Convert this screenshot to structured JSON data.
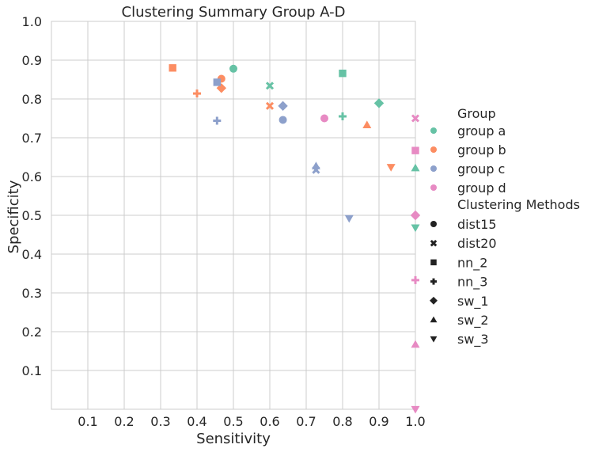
{
  "chart_data": {
    "type": "scatter",
    "title": "Clustering Summary Group A-D",
    "xlabel": "Sensitivity",
    "ylabel": "Specificity",
    "xlim": [
      0.0,
      1.0
    ],
    "ylim": [
      0.0,
      1.0
    ],
    "x_ticks": [
      "0.1",
      "0.2",
      "0.3",
      "0.4",
      "0.5",
      "0.6",
      "0.7",
      "0.8",
      "0.9",
      "1.0"
    ],
    "y_ticks": [
      "0.1",
      "0.2",
      "0.3",
      "0.4",
      "0.5",
      "0.6",
      "0.7",
      "0.8",
      "0.9",
      "1.0"
    ],
    "grid": true,
    "legend_position": "right",
    "legend": {
      "hue_title": "Group",
      "hue_entries": [
        {
          "label": "group a",
          "color": "#66c2a5"
        },
        {
          "label": "group b",
          "color": "#fc8d62"
        },
        {
          "label": "group c",
          "color": "#8da0cb"
        },
        {
          "label": "group d",
          "color": "#e78ac3"
        }
      ],
      "style_title": "Clustering Methods",
      "style_entries": [
        {
          "label": "dist15",
          "marker": "circle"
        },
        {
          "label": "dist20",
          "marker": "x"
        },
        {
          "label": "nn_2",
          "marker": "square"
        },
        {
          "label": "nn_3",
          "marker": "plus"
        },
        {
          "label": "sw_1",
          "marker": "diamond"
        },
        {
          "label": "sw_2",
          "marker": "triangle-up"
        },
        {
          "label": "sw_3",
          "marker": "triangle-down"
        }
      ]
    },
    "points": [
      {
        "group": "group a",
        "method": "dist15",
        "x": 0.5,
        "y": 0.878
      },
      {
        "group": "group a",
        "method": "dist20",
        "x": 0.6,
        "y": 0.834
      },
      {
        "group": "group a",
        "method": "nn_2",
        "x": 0.8,
        "y": 0.866
      },
      {
        "group": "group a",
        "method": "nn_3",
        "x": 0.8,
        "y": 0.755
      },
      {
        "group": "group a",
        "method": "sw_1",
        "x": 0.9,
        "y": 0.789
      },
      {
        "group": "group a",
        "method": "sw_2",
        "x": 1.0,
        "y": 0.622
      },
      {
        "group": "group a",
        "method": "sw_3",
        "x": 1.0,
        "y": 0.468
      },
      {
        "group": "group b",
        "method": "dist15",
        "x": 0.467,
        "y": 0.852
      },
      {
        "group": "group b",
        "method": "dist20",
        "x": 0.6,
        "y": 0.782
      },
      {
        "group": "group b",
        "method": "nn_2",
        "x": 0.333,
        "y": 0.88
      },
      {
        "group": "group b",
        "method": "nn_3",
        "x": 0.4,
        "y": 0.814
      },
      {
        "group": "group b",
        "method": "sw_1",
        "x": 0.467,
        "y": 0.828
      },
      {
        "group": "group b",
        "method": "sw_2",
        "x": 0.867,
        "y": 0.733
      },
      {
        "group": "group b",
        "method": "sw_3",
        "x": 0.933,
        "y": 0.624
      },
      {
        "group": "group c",
        "method": "dist15",
        "x": 0.636,
        "y": 0.746
      },
      {
        "group": "group c",
        "method": "dist20",
        "x": 0.727,
        "y": 0.617
      },
      {
        "group": "group c",
        "method": "nn_2",
        "x": 0.455,
        "y": 0.843
      },
      {
        "group": "group c",
        "method": "nn_3",
        "x": 0.455,
        "y": 0.744
      },
      {
        "group": "group c",
        "method": "sw_1",
        "x": 0.636,
        "y": 0.782
      },
      {
        "group": "group c",
        "method": "sw_2",
        "x": 0.727,
        "y": 0.627
      },
      {
        "group": "group c",
        "method": "sw_3",
        "x": 0.818,
        "y": 0.492
      },
      {
        "group": "group d",
        "method": "dist15",
        "x": 0.75,
        "y": 0.75
      },
      {
        "group": "group d",
        "method": "dist20",
        "x": 1.0,
        "y": 0.75
      },
      {
        "group": "group d",
        "method": "nn_2",
        "x": 1.0,
        "y": 0.667
      },
      {
        "group": "group d",
        "method": "nn_3",
        "x": 1.0,
        "y": 0.333
      },
      {
        "group": "group d",
        "method": "sw_1",
        "x": 1.0,
        "y": 0.5
      },
      {
        "group": "group d",
        "method": "sw_2",
        "x": 1.0,
        "y": 0.167
      },
      {
        "group": "group d",
        "method": "sw_3",
        "x": 1.0,
        "y": 0.0
      }
    ]
  }
}
